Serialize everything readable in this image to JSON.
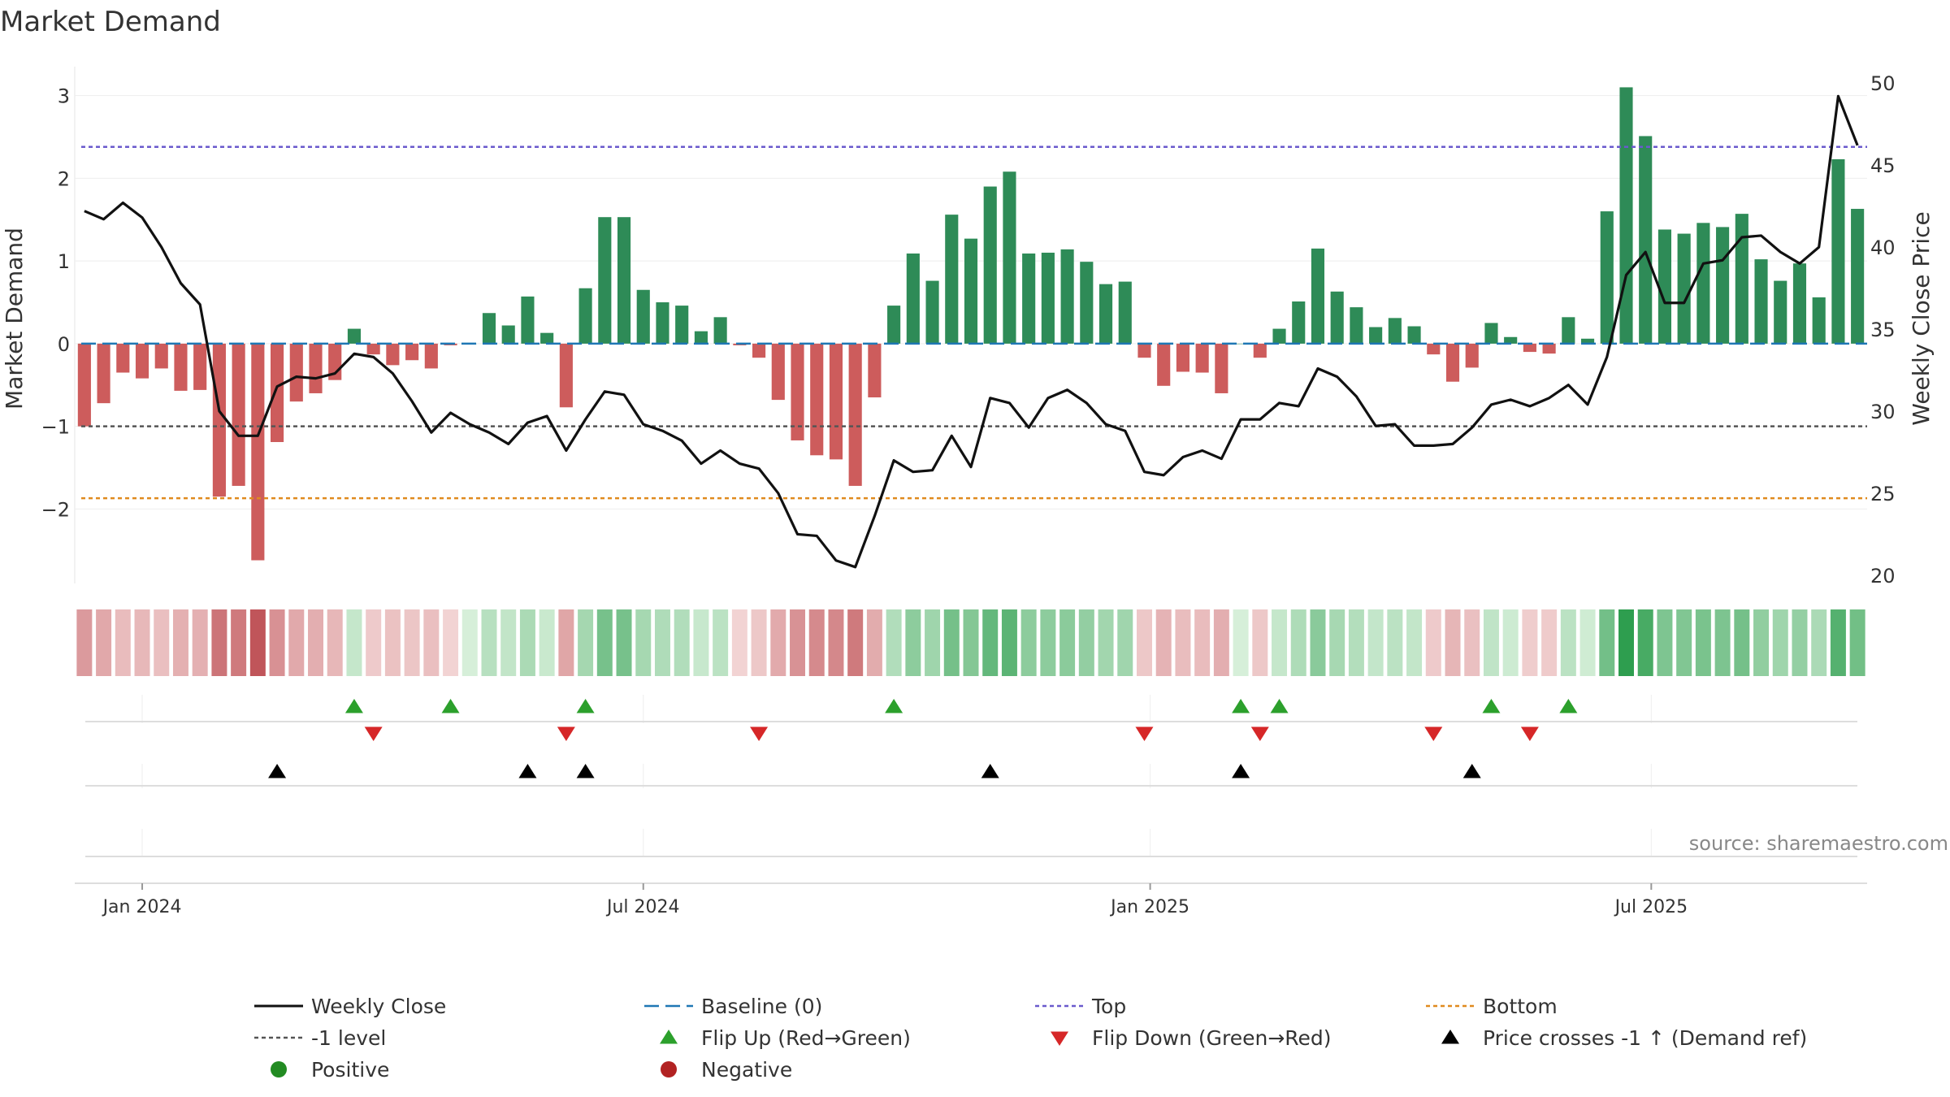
{
  "chart_data": {
    "type": "bar",
    "title": "Market Demand",
    "ylabel": "Market Demand",
    "y2label": "Weekly Close Price",
    "source": "source: sharemaestro.com",
    "ylim": [
      -2.9,
      3.35
    ],
    "y2lim": [
      19.5,
      51
    ],
    "yticks": [
      {
        "v": 3,
        "label": "3"
      },
      {
        "v": 2,
        "label": "2"
      },
      {
        "v": 1,
        "label": "1"
      },
      {
        "v": 0,
        "label": "0"
      },
      {
        "v": -1,
        "label": "−1"
      },
      {
        "v": -2,
        "label": "−2"
      }
    ],
    "y2ticks": [
      {
        "v": 50,
        "label": "50"
      },
      {
        "v": 45,
        "label": "45"
      },
      {
        "v": 40,
        "label": "40"
      },
      {
        "v": 35,
        "label": "35"
      },
      {
        "v": 30,
        "label": "30"
      },
      {
        "v": 25,
        "label": "25"
      },
      {
        "v": 20,
        "label": "20"
      }
    ],
    "xticks": [
      {
        "week": 3,
        "label": "Jan 2024"
      },
      {
        "week": 29,
        "label": "Jul 2024"
      },
      {
        "week": 55.3,
        "label": "Jan 2025"
      },
      {
        "week": 81.3,
        "label": "Jul 2025"
      }
    ],
    "top_level": 2.38,
    "bottom_level": -1.87,
    "ref_level": -1,
    "demand": [
      -1.0,
      -0.72,
      -0.35,
      -0.42,
      -0.3,
      -0.57,
      -0.56,
      -1.85,
      -1.72,
      -2.62,
      -1.19,
      -0.7,
      -0.6,
      -0.44,
      0.18,
      -0.13,
      -0.26,
      -0.2,
      -0.3,
      -0.02,
      0.0,
      0.37,
      0.22,
      0.57,
      0.13,
      -0.77,
      0.67,
      1.53,
      1.53,
      0.65,
      0.5,
      0.46,
      0.15,
      0.32,
      -0.02,
      -0.17,
      -0.68,
      -1.17,
      -1.35,
      -1.4,
      -1.72,
      -0.65,
      0.46,
      1.09,
      0.76,
      1.56,
      1.27,
      1.9,
      2.08,
      1.09,
      1.1,
      1.14,
      0.99,
      0.72,
      0.75,
      -0.17,
      -0.51,
      -0.34,
      -0.35,
      -0.6,
      0.0,
      -0.17,
      0.18,
      0.51,
      1.15,
      0.63,
      0.44,
      0.2,
      0.31,
      0.21,
      -0.13,
      -0.46,
      -0.29,
      0.25,
      0.08,
      -0.1,
      -0.12,
      0.32,
      0.06,
      1.6,
      3.1,
      2.51,
      1.38,
      1.33,
      1.46,
      1.41,
      1.57,
      1.02,
      0.76,
      0.97,
      0.56,
      2.23,
      1.63
    ],
    "price": [
      42.2,
      41.7,
      42.7,
      41.8,
      40.0,
      37.8,
      36.5,
      30.0,
      28.5,
      28.5,
      31.5,
      32.1,
      32.0,
      32.3,
      33.5,
      33.3,
      32.3,
      30.6,
      28.7,
      29.9,
      29.2,
      28.7,
      28.0,
      29.3,
      29.7,
      27.6,
      29.5,
      31.2,
      31.0,
      29.2,
      28.8,
      28.2,
      26.8,
      27.6,
      26.8,
      26.5,
      25.0,
      22.5,
      22.4,
      20.9,
      20.5,
      23.6,
      27.0,
      26.3,
      26.4,
      28.5,
      26.6,
      30.8,
      30.5,
      29.0,
      30.8,
      31.3,
      30.5,
      29.2,
      28.8,
      26.3,
      26.1,
      27.2,
      27.6,
      27.1,
      29.5,
      29.5,
      30.5,
      30.3,
      32.6,
      32.1,
      30.9,
      29.1,
      29.2,
      27.9,
      27.9,
      28.0,
      29.0,
      30.4,
      30.7,
      30.3,
      30.8,
      31.6,
      30.4,
      33.3,
      38.3,
      39.7,
      36.6,
      36.6,
      39.0,
      39.2,
      40.6,
      40.7,
      39.7,
      39.0,
      40.0,
      49.2,
      46.2
    ],
    "flip_up_weeks": [
      14,
      19,
      26,
      42,
      60,
      62,
      73,
      77
    ],
    "flip_down_weeks": [
      15,
      25,
      35,
      55,
      61,
      70,
      75
    ],
    "price_cross_weeks": [
      10,
      23,
      26,
      47,
      60,
      72
    ],
    "legend": [
      {
        "key": "weekly_close",
        "label": "Weekly Close"
      },
      {
        "key": "baseline",
        "label": "Baseline (0)"
      },
      {
        "key": "top",
        "label": "Top"
      },
      {
        "key": "bottom",
        "label": "Bottom"
      },
      {
        "key": "minus1",
        "label": "-1 level"
      },
      {
        "key": "flip_up",
        "label": "Flip Up (Red→Green)"
      },
      {
        "key": "flip_down",
        "label": "Flip Down (Green→Red)"
      },
      {
        "key": "price_cross",
        "label": "Price crosses -1 ↑ (Demand ref)"
      },
      {
        "key": "positive",
        "label": "Positive"
      },
      {
        "key": "negative",
        "label": "Negative"
      }
    ],
    "colors": {
      "positive": "#2e8b57",
      "negative": "#cd5c5c",
      "line": "#111111",
      "baseline": "#1f77b4",
      "top": "#6a5acd",
      "bottom": "#e08a1e",
      "ref": "#555555",
      "flip_up": "#2ca02c",
      "flip_down": "#d62728",
      "cross": "#000000",
      "positive_dot": "#228b22",
      "negative_dot": "#b22222"
    }
  }
}
